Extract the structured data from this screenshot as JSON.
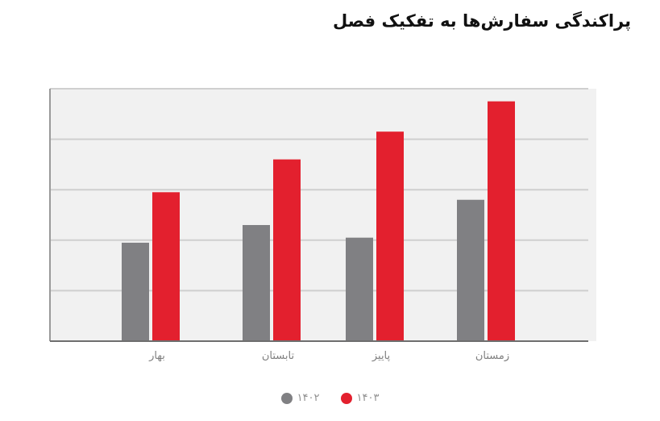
{
  "title": "پراکندگی سفارش‌ها به تفکیک فصل",
  "chart_data": {
    "type": "bar",
    "categories": [
      "بهار",
      "تابستان",
      "پاییز",
      "زمستان"
    ],
    "series": [
      {
        "name": "۱۴۰۲",
        "color": "#808083",
        "values": [
          1.95,
          2.3,
          2.05,
          2.8
        ]
      },
      {
        "name": "۱۴۰۳",
        "color": "#e3202e",
        "values": [
          2.95,
          3.6,
          4.15,
          4.75
        ]
      }
    ],
    "ylim": [
      0,
      5
    ],
    "grid": true,
    "legend_position": "bottom-center",
    "xlabel": "",
    "ylabel": ""
  }
}
